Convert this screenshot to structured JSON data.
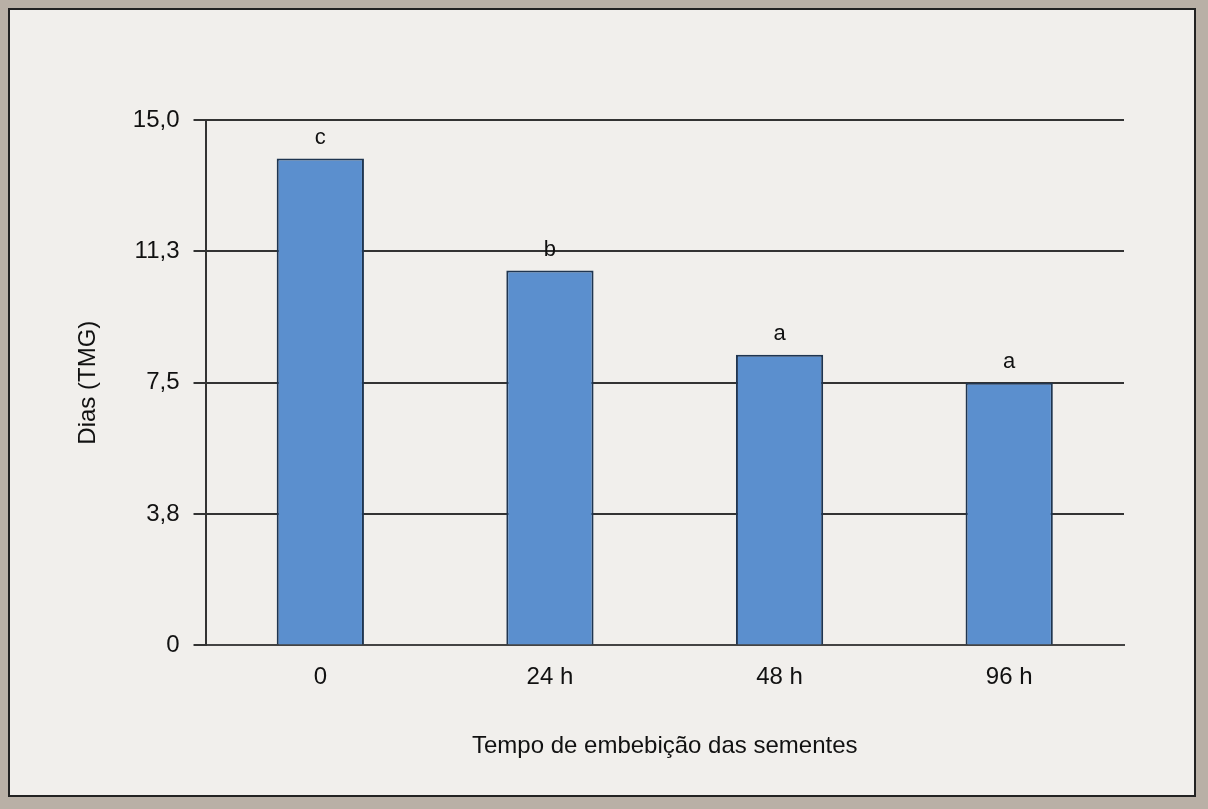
{
  "chart_data": {
    "type": "bar",
    "y_label": "Dias (TMG)",
    "x_label": "Tempo de embebição das sementes",
    "categories": [
      "0",
      "24 h",
      "48 h",
      "96 h"
    ],
    "values": [
      13.9,
      10.7,
      8.3,
      7.5
    ],
    "color": "#5b8fce",
    "ylim": [
      0,
      15
    ],
    "yticks": [
      0,
      {
        "value": 3.75,
        "label": "3,8"
      },
      {
        "value": 7.5,
        "label": "7,5"
      },
      {
        "value": 11.25,
        "label": "11,3"
      },
      {
        "value": 15,
        "label": "15,0"
      }
    ],
    "annotations": [
      "c",
      "b",
      "a",
      "a"
    ],
    "grid": true
  }
}
